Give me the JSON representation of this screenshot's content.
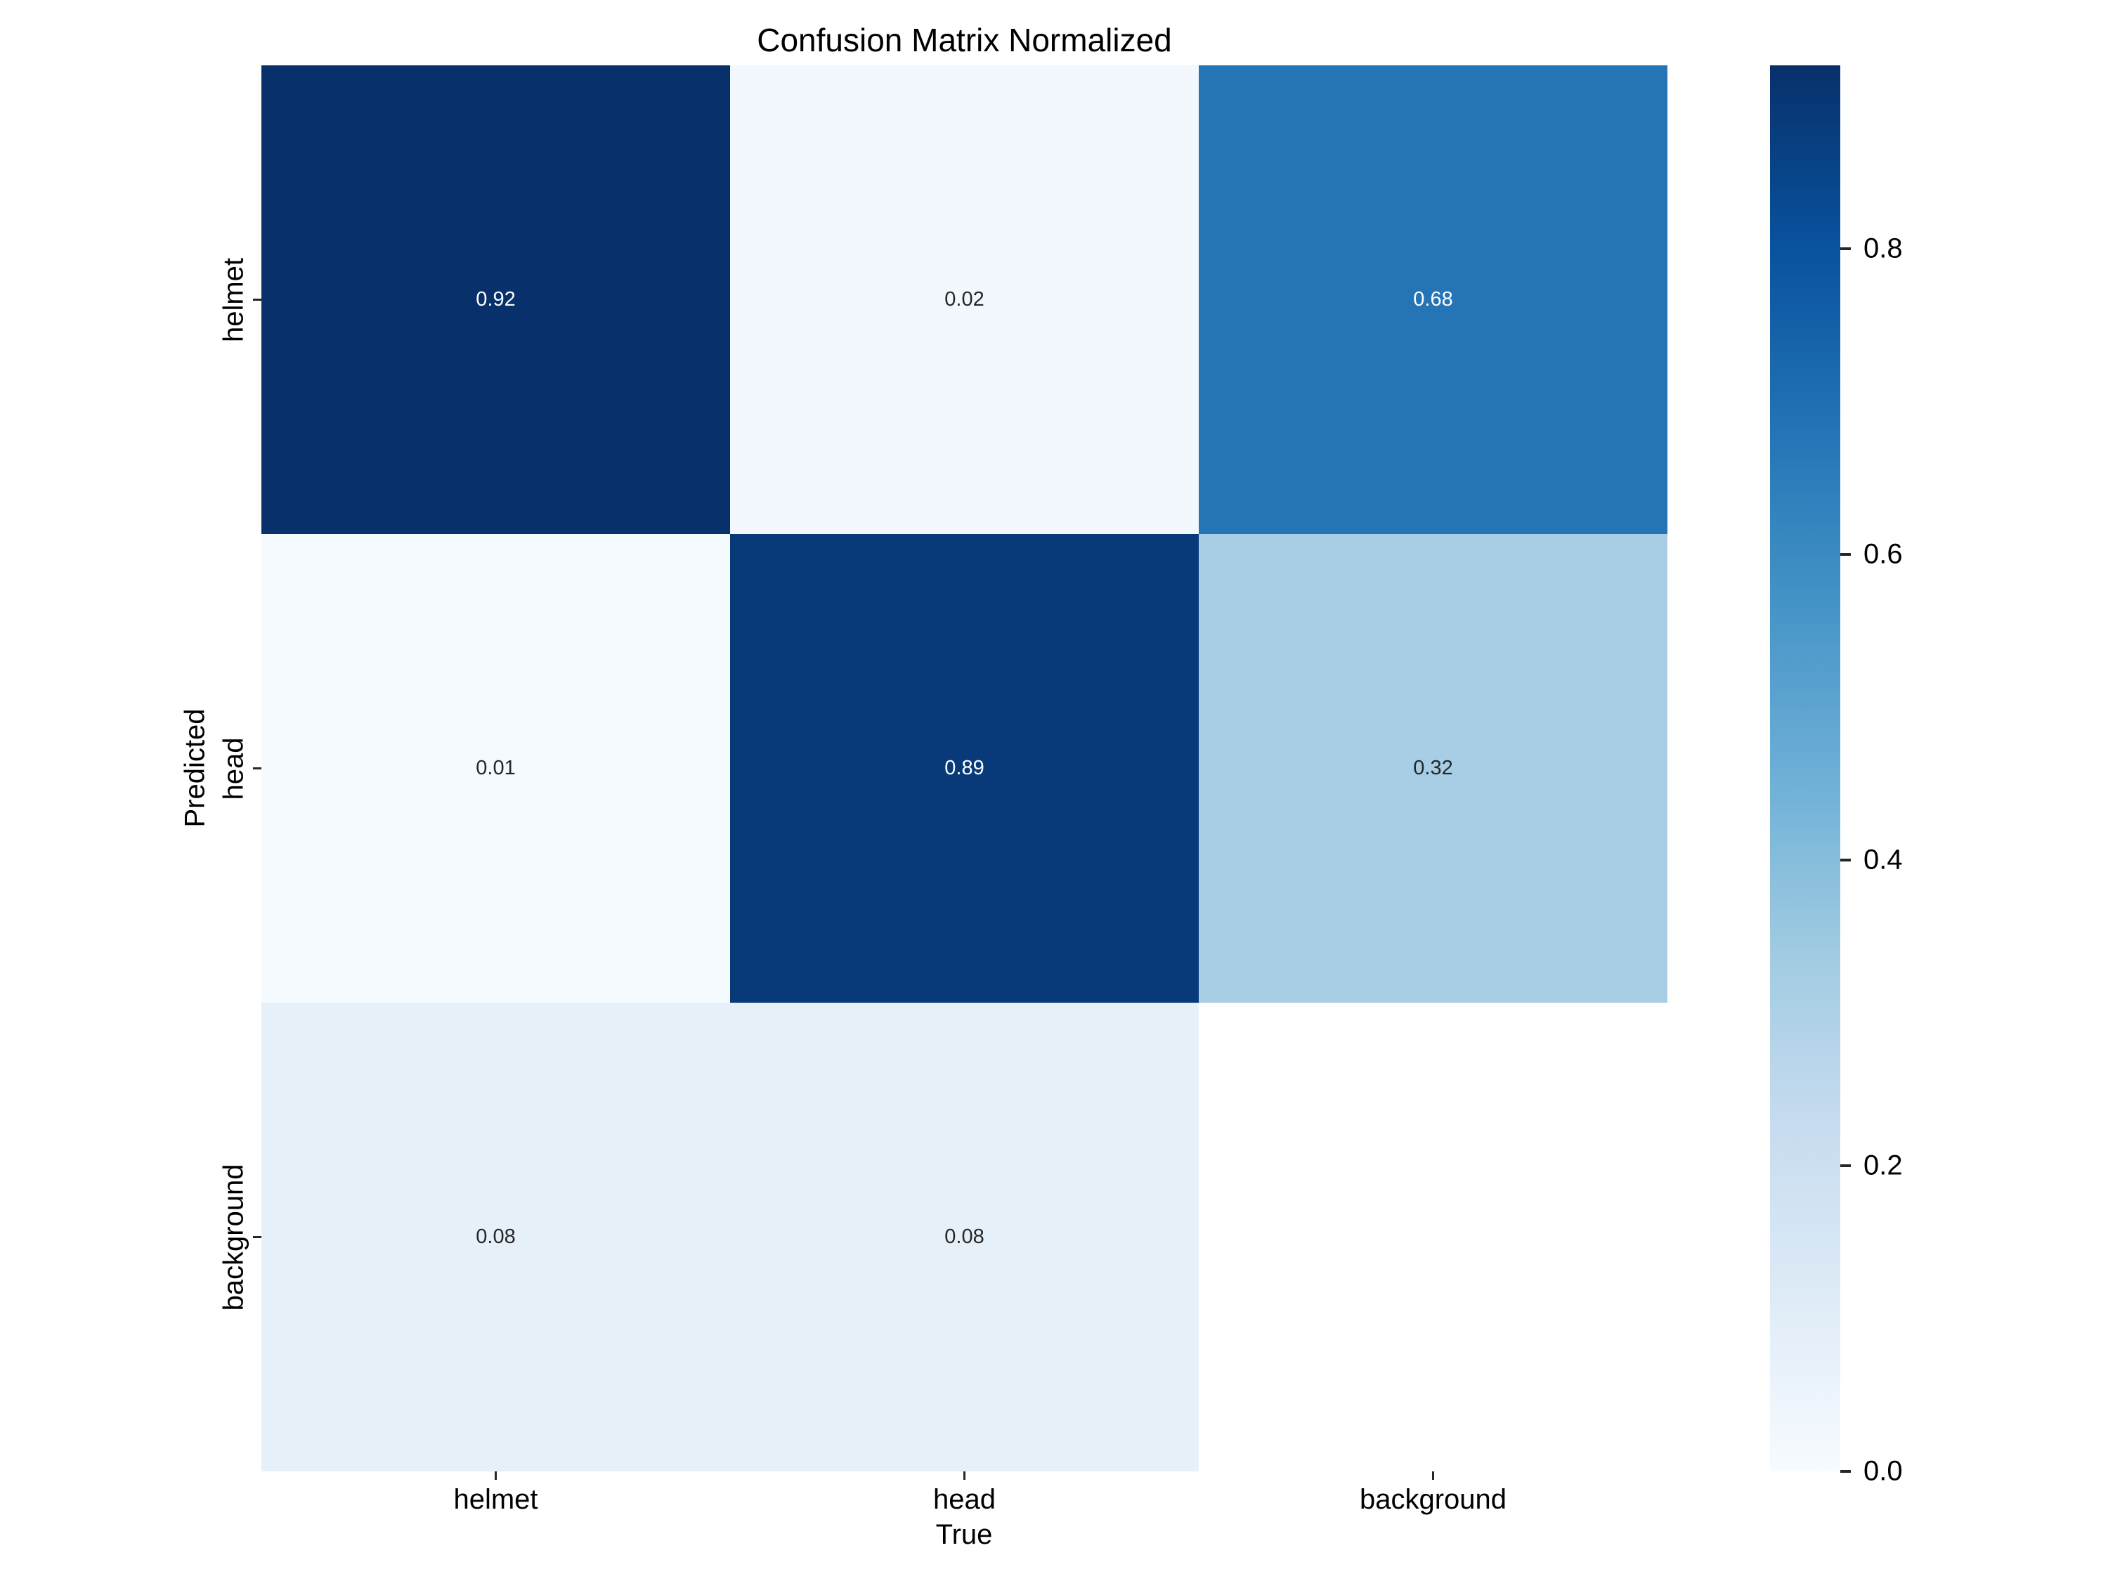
{
  "figure": {
    "background": "#ffffff"
  },
  "chart_data": {
    "type": "heatmap",
    "title": "Confusion Matrix Normalized",
    "xlabel": "True",
    "ylabel": "Predicted",
    "x_categories": [
      "helmet",
      "head",
      "background"
    ],
    "y_categories": [
      "helmet",
      "head",
      "background"
    ],
    "matrix": [
      [
        0.92,
        0.02,
        0.68
      ],
      [
        0.01,
        0.89,
        0.32
      ],
      [
        0.08,
        0.08,
        null
      ]
    ],
    "cell_labels": [
      [
        "0.92",
        "0.02",
        "0.68"
      ],
      [
        "0.01",
        "0.89",
        "0.32"
      ],
      [
        "0.08",
        "0.08",
        ""
      ]
    ],
    "colormap": "Blues",
    "vmin": 0.0,
    "vmax": 0.92,
    "grid": false,
    "legend": "colorbar-right",
    "colorbar_ticks": [
      {
        "value": 0.8,
        "label": "0.8"
      },
      {
        "value": 0.6,
        "label": "0.6"
      },
      {
        "value": 0.4,
        "label": "0.4"
      },
      {
        "value": 0.2,
        "label": "0.2"
      },
      {
        "value": 0.0,
        "label": "0.0"
      }
    ]
  },
  "colors": {
    "cell_colors": [
      [
        "#08306b",
        "#f3f8fe",
        "#2474b6"
      ],
      [
        "#f5fafe",
        "#083a79",
        "#a7cee4"
      ],
      [
        "#e6f0f9",
        "#e6f0f9",
        "#ffffff"
      ]
    ],
    "cell_text_colors": [
      [
        "#ffffff",
        "#262626",
        "#ffffff"
      ],
      [
        "#262626",
        "#ffffff",
        "#262626"
      ],
      [
        "#262626",
        "#262626",
        "#262626"
      ]
    ],
    "colorbar_gradient_stops": [
      "#08306b 0%",
      "#08519c 12.5%",
      "#2171b5 25%",
      "#4292c6 37.5%",
      "#6baed6 50%",
      "#9ecae1 62.5%",
      "#c6dbef 75%",
      "#deebf7 87.5%",
      "#f7fbff 100%"
    ],
    "tick_color": "#262626",
    "text_color": "#000000"
  }
}
